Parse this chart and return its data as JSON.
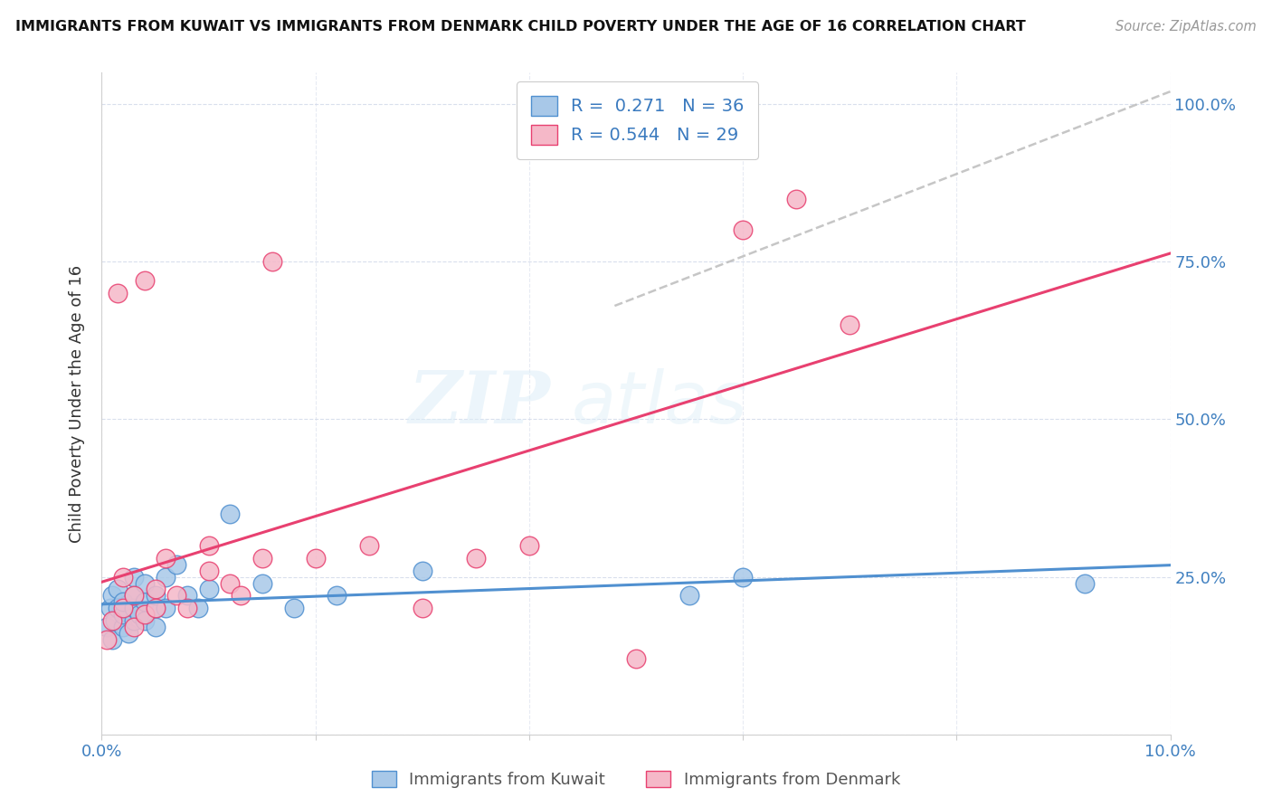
{
  "title": "IMMIGRANTS FROM KUWAIT VS IMMIGRANTS FROM DENMARK CHILD POVERTY UNDER THE AGE OF 16 CORRELATION CHART",
  "source": "Source: ZipAtlas.com",
  "ylabel": "Child Poverty Under the Age of 16",
  "legend_label_blue": "Immigrants from Kuwait",
  "legend_label_pink": "Immigrants from Denmark",
  "legend_R_blue": "0.271",
  "legend_N_blue": "36",
  "legend_R_pink": "0.544",
  "legend_N_pink": "29",
  "watermark_left": "ZIP",
  "watermark_right": "atlas",
  "blue_color": "#a8c8e8",
  "pink_color": "#f5b8c8",
  "blue_line_color": "#5090d0",
  "pink_line_color": "#e84070",
  "dashed_line_color": "#b8b8b8",
  "kuwait_x": [
    0.0005,
    0.0008,
    0.001,
    0.001,
    0.0012,
    0.0015,
    0.0015,
    0.002,
    0.002,
    0.002,
    0.0025,
    0.003,
    0.003,
    0.003,
    0.003,
    0.0035,
    0.004,
    0.004,
    0.004,
    0.005,
    0.005,
    0.005,
    0.006,
    0.006,
    0.007,
    0.008,
    0.009,
    0.01,
    0.012,
    0.015,
    0.018,
    0.022,
    0.03,
    0.055,
    0.06,
    0.092
  ],
  "kuwait_y": [
    0.17,
    0.2,
    0.15,
    0.22,
    0.18,
    0.2,
    0.23,
    0.17,
    0.19,
    0.21,
    0.16,
    0.18,
    0.2,
    0.22,
    0.25,
    0.19,
    0.21,
    0.18,
    0.24,
    0.2,
    0.22,
    0.17,
    0.25,
    0.2,
    0.27,
    0.22,
    0.2,
    0.23,
    0.35,
    0.24,
    0.2,
    0.22,
    0.26,
    0.22,
    0.25,
    0.24
  ],
  "denmark_x": [
    0.0005,
    0.001,
    0.0015,
    0.002,
    0.002,
    0.003,
    0.003,
    0.004,
    0.004,
    0.005,
    0.005,
    0.006,
    0.007,
    0.008,
    0.01,
    0.01,
    0.012,
    0.013,
    0.015,
    0.016,
    0.02,
    0.025,
    0.03,
    0.035,
    0.04,
    0.05,
    0.06,
    0.065,
    0.07
  ],
  "denmark_y": [
    0.15,
    0.18,
    0.7,
    0.2,
    0.25,
    0.17,
    0.22,
    0.19,
    0.72,
    0.23,
    0.2,
    0.28,
    0.22,
    0.2,
    0.26,
    0.3,
    0.24,
    0.22,
    0.28,
    0.75,
    0.28,
    0.3,
    0.2,
    0.28,
    0.3,
    0.12,
    0.8,
    0.85,
    0.65
  ],
  "xlim": [
    0.0,
    0.1
  ],
  "ylim": [
    0.0,
    1.05
  ],
  "x_tick_positions": [
    0.0,
    0.02,
    0.04,
    0.06,
    0.08,
    0.1
  ],
  "y_tick_positions": [
    0.0,
    0.25,
    0.5,
    0.75,
    1.0
  ],
  "y_tick_labels": [
    "",
    "25.0%",
    "50.0%",
    "75.0%",
    "100.0%"
  ]
}
